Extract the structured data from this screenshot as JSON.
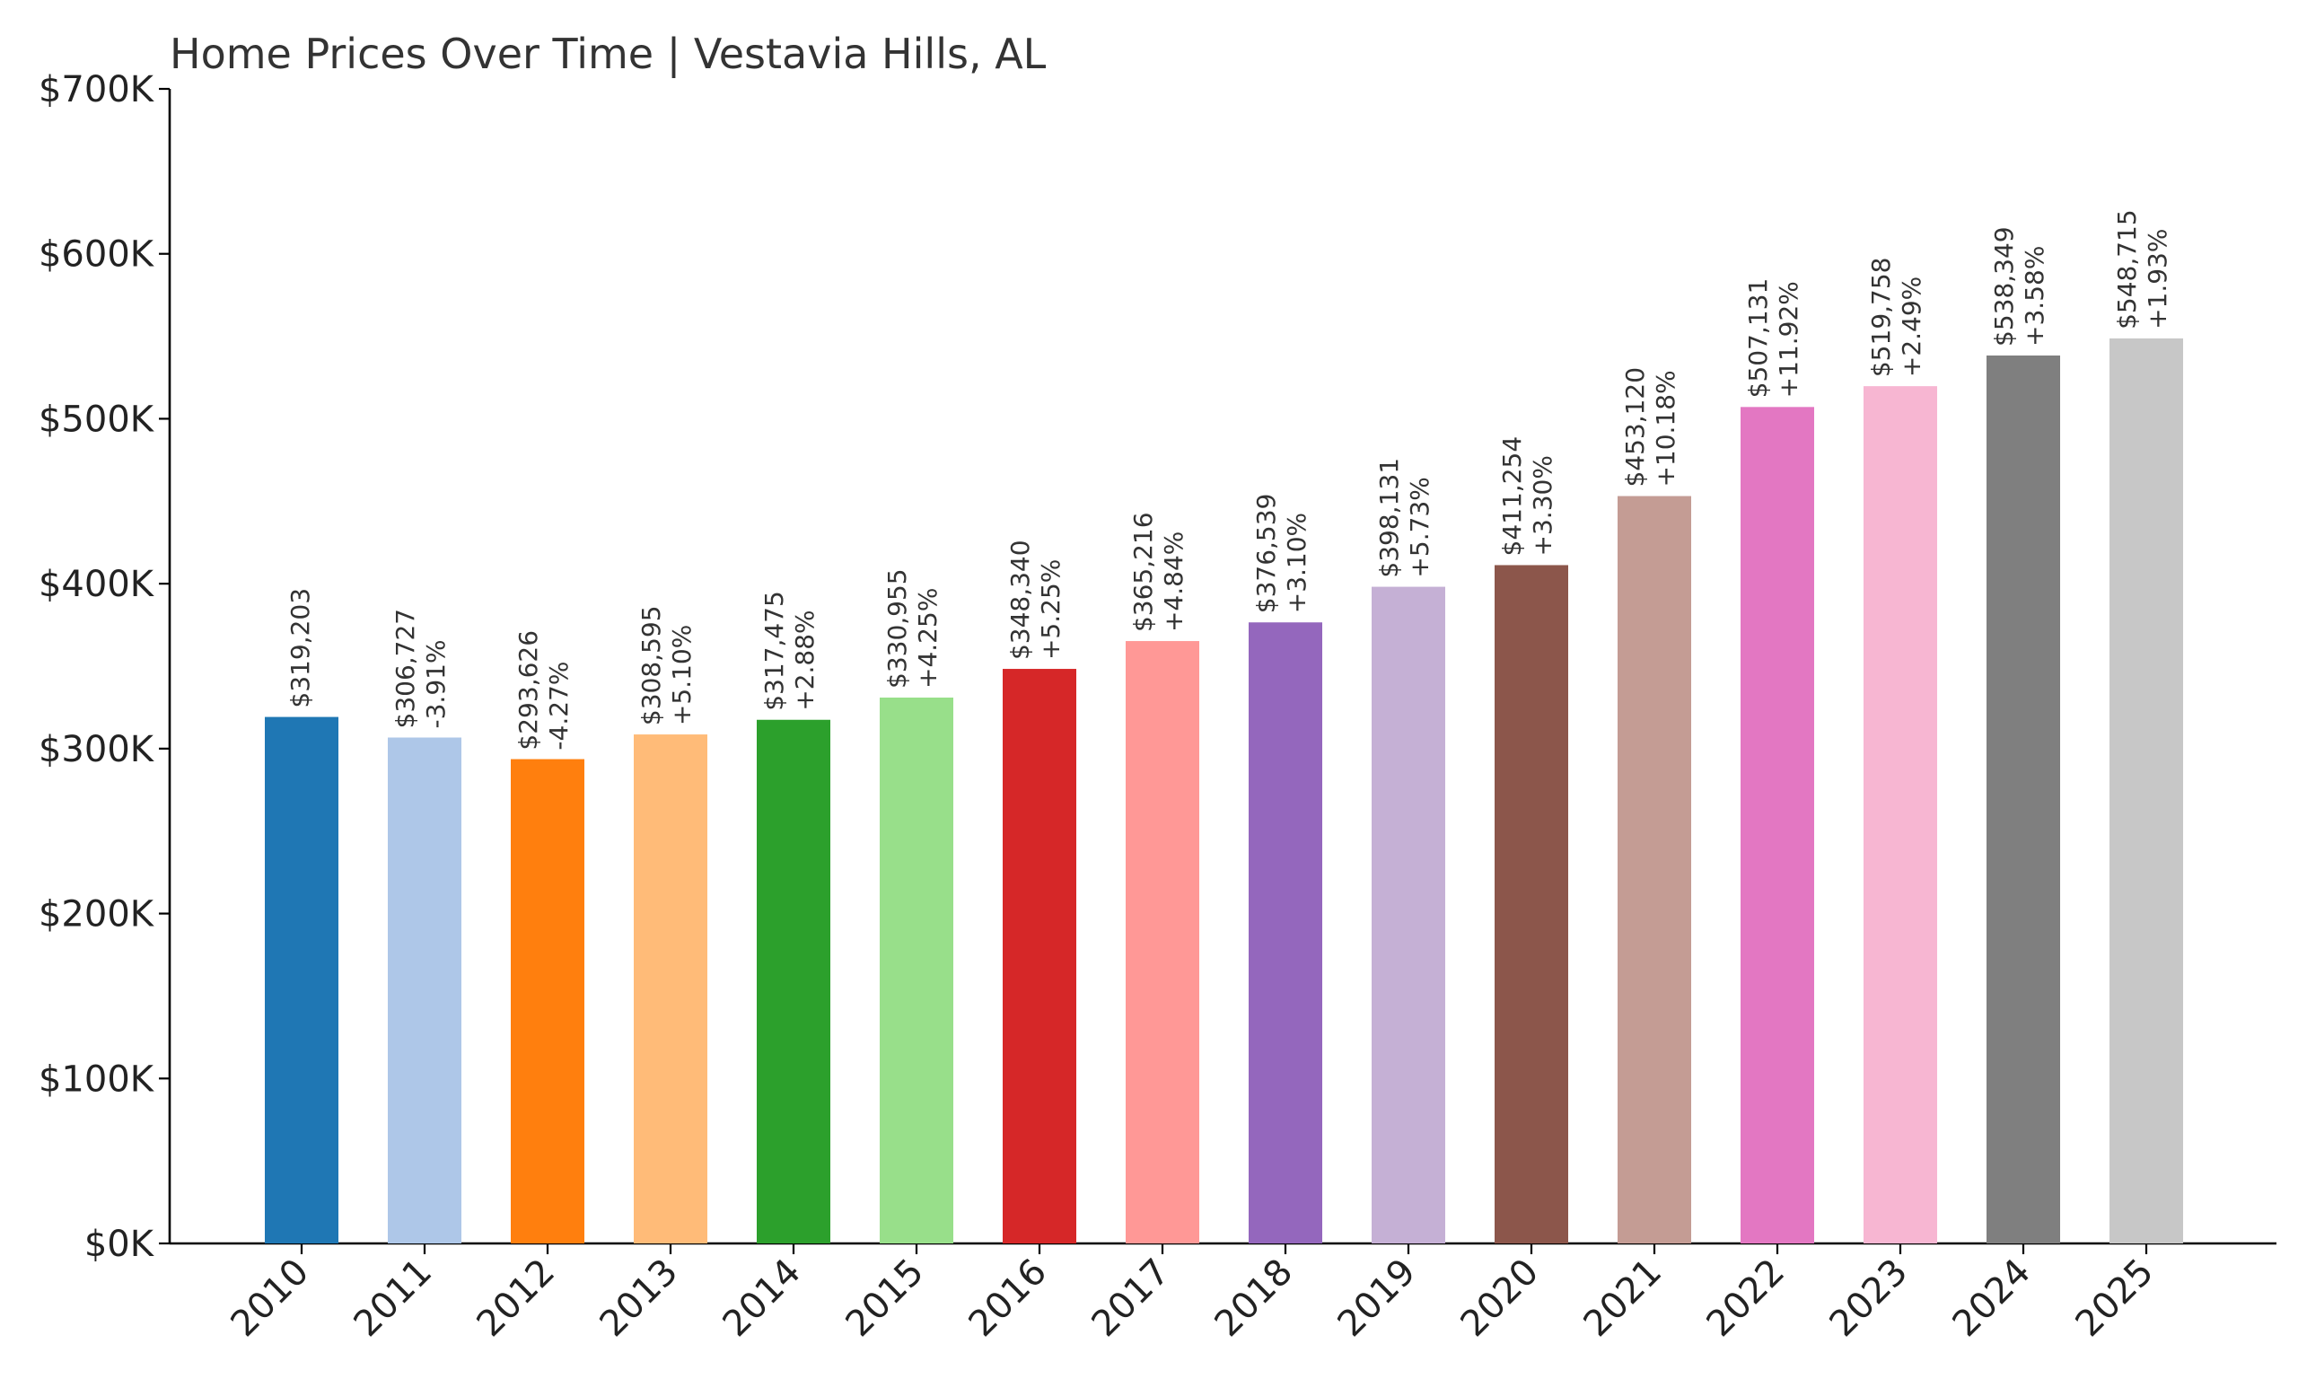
{
  "chart_data": {
    "type": "bar",
    "title": "Home Prices Over Time | Vestavia Hills, AL",
    "xlabel": "",
    "ylabel": "",
    "ylim": [
      0,
      700000
    ],
    "y_ticks": [
      {
        "value": 0,
        "label": "$0K"
      },
      {
        "value": 100000,
        "label": "$100K"
      },
      {
        "value": 200000,
        "label": "$200K"
      },
      {
        "value": 300000,
        "label": "$300K"
      },
      {
        "value": 400000,
        "label": "$400K"
      },
      {
        "value": 500000,
        "label": "$500K"
      },
      {
        "value": 600000,
        "label": "$600K"
      },
      {
        "value": 700000,
        "label": "$700K"
      }
    ],
    "grid": false,
    "legend": "none",
    "categories": [
      "2010",
      "2011",
      "2012",
      "2013",
      "2014",
      "2015",
      "2016",
      "2017",
      "2018",
      "2019",
      "2020",
      "2021",
      "2022",
      "2023",
      "2024",
      "2025"
    ],
    "values": [
      319203,
      306727,
      293626,
      308595,
      317475,
      330955,
      348340,
      365216,
      376539,
      398131,
      411254,
      453120,
      507131,
      519758,
      538349,
      548715
    ],
    "value_labels": [
      "$319,203",
      "$306,727",
      "$293,626",
      "$308,595",
      "$317,475",
      "$330,955",
      "$348,340",
      "$365,216",
      "$376,539",
      "$398,131",
      "$411,254",
      "$453,120",
      "$507,131",
      "$519,758",
      "$538,349",
      "$548,715"
    ],
    "change_labels": [
      "",
      "-3.91%",
      "-4.27%",
      "+5.10%",
      "+2.88%",
      "+4.25%",
      "+5.25%",
      "+4.84%",
      "+3.10%",
      "+5.73%",
      "+3.30%",
      "+10.18%",
      "+11.92%",
      "+2.49%",
      "+3.58%",
      "+1.93%"
    ],
    "colors": [
      "#1f77b4",
      "#aec7e8",
      "#ff7f0e",
      "#ffbb78",
      "#2ca02c",
      "#98df8a",
      "#d62728",
      "#ff9896",
      "#9467bd",
      "#c5b0d5",
      "#8c564b",
      "#c49c94",
      "#e377c2",
      "#f7b6d2",
      "#7f7f7f",
      "#c7c7c7"
    ]
  }
}
